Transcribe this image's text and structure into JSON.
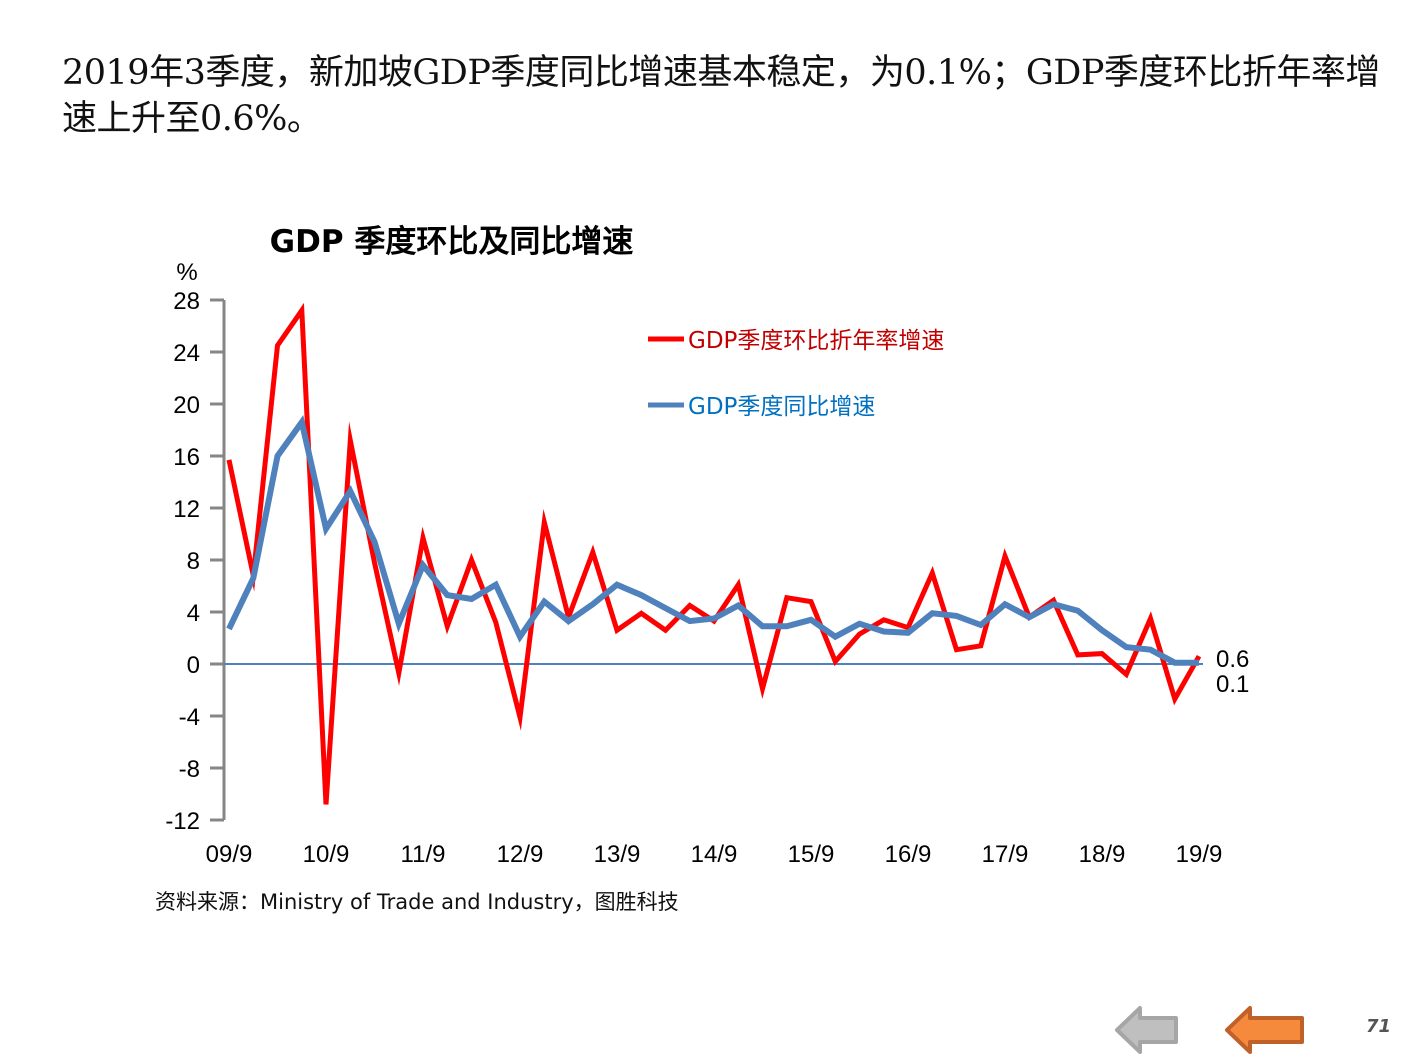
{
  "headline": "2019年3季度，新加坡GDP季度同比增速基本稳定，为0.1%；GDP季度环比折年率增速上升至0.6%。",
  "source": "资料来源：Ministry of Trade and Industry，图胜科技",
  "page_number": "71",
  "nav": {
    "prev_icon": "arrow-left-icon",
    "next_icon": "arrow-left-icon",
    "prev_color": "#a6a6a6",
    "next_color": "#f58a3c"
  },
  "chart_data": {
    "type": "line",
    "title": "GDP 季度环比及同比增速",
    "ylabel": "%",
    "xlabel": "",
    "ylim": [
      -12,
      28
    ],
    "yticks": [
      "28",
      "24",
      "20",
      "16",
      "12",
      "8",
      "4",
      "0",
      "-4",
      "-8",
      "-12"
    ],
    "ytick_values": [
      28,
      24,
      20,
      16,
      12,
      8,
      4,
      0,
      -4,
      -8,
      -12
    ],
    "xtick_labels": [
      "09/9",
      "10/9",
      "11/9",
      "12/9",
      "13/9",
      "14/9",
      "15/9",
      "16/9",
      "17/9",
      "18/9",
      "19/9"
    ],
    "xtick_every": 4,
    "grid": false,
    "legend_position": "top-right",
    "series": [
      {
        "name": "GDP季度环比折年率增速",
        "color": "#ff0000",
        "label_color": "#c00000",
        "end_label": "0.6",
        "values": [
          15.7,
          6.8,
          24.5,
          27.2,
          -10.8,
          17.2,
          7.8,
          -0.7,
          9.7,
          2.9,
          8.0,
          3.2,
          -4.1,
          10.9,
          3.6,
          8.6,
          2.6,
          3.9,
          2.6,
          4.5,
          3.3,
          6.1,
          -1.9,
          5.1,
          4.8,
          0.2,
          2.3,
          3.4,
          2.8,
          7.0,
          1.1,
          1.4,
          8.3,
          3.6,
          4.9,
          0.7,
          0.8,
          -0.8,
          3.5,
          -2.7,
          0.6
        ]
      },
      {
        "name": "GDP季度同比增速",
        "color": "#4f81bd",
        "label_color": "#0070c0",
        "end_label": "0.1",
        "values": [
          2.7,
          6.6,
          16.0,
          18.6,
          10.4,
          13.3,
          9.4,
          3.1,
          7.6,
          5.3,
          5.0,
          6.1,
          2.1,
          4.8,
          3.3,
          4.6,
          6.1,
          5.3,
          4.3,
          3.3,
          3.5,
          4.5,
          2.9,
          2.9,
          3.4,
          2.1,
          3.1,
          2.5,
          2.4,
          3.9,
          3.7,
          3.0,
          4.6,
          3.6,
          4.6,
          4.1,
          2.6,
          1.3,
          1.1,
          0.1,
          0.1
        ]
      }
    ]
  }
}
